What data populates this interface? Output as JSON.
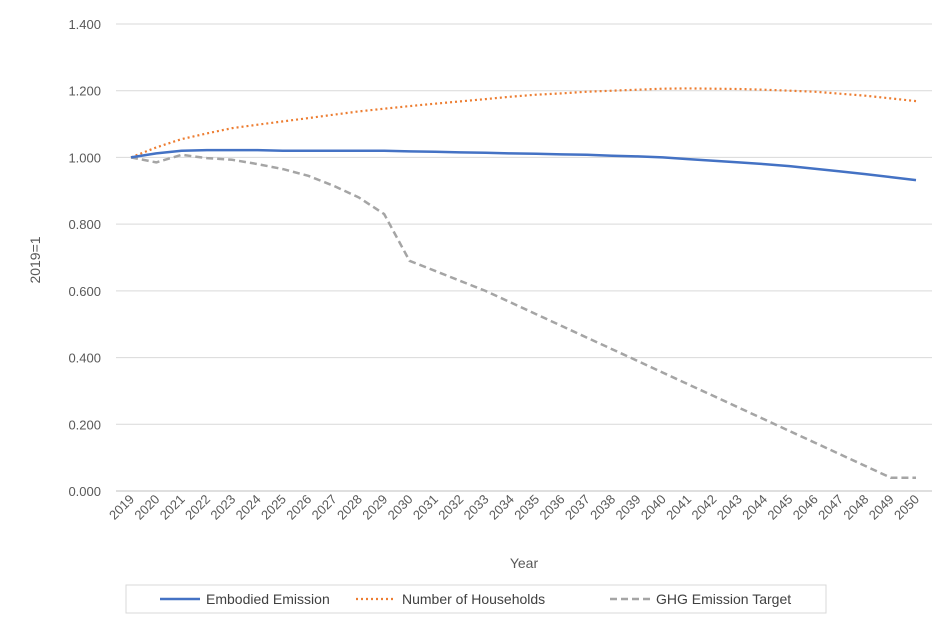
{
  "chart_data": {
    "type": "line",
    "title": "",
    "xlabel": "Year",
    "ylabel": "2019=1",
    "ylim": [
      0,
      1.4
    ],
    "y_ticks": [
      "0.000",
      "0.200",
      "0.400",
      "0.600",
      "0.800",
      "1.000",
      "1.200",
      "1.400"
    ],
    "grid": "horizontal",
    "legend_position": "bottom",
    "categories": [
      "2019",
      "2020",
      "2021",
      "2022",
      "2023",
      "2024",
      "2025",
      "2026",
      "2027",
      "2028",
      "2029",
      "2030",
      "2031",
      "2032",
      "2033",
      "2034",
      "2035",
      "2036",
      "2037",
      "2038",
      "2039",
      "2040",
      "2041",
      "2042",
      "2043",
      "2044",
      "2045",
      "2046",
      "2047",
      "2048",
      "2049",
      "2050"
    ],
    "series": [
      {
        "name": "Embodied Emission",
        "color": "#4472C4",
        "style": "solid",
        "values": [
          1.0,
          1.012,
          1.02,
          1.022,
          1.022,
          1.022,
          1.02,
          1.02,
          1.02,
          1.02,
          1.02,
          1.018,
          1.017,
          1.015,
          1.014,
          1.012,
          1.011,
          1.009,
          1.008,
          1.005,
          1.003,
          1.0,
          0.995,
          0.99,
          0.985,
          0.98,
          0.974,
          0.966,
          0.958,
          0.95,
          0.941,
          0.932
        ]
      },
      {
        "name": "Number of Households",
        "color": "#ED7D31",
        "style": "dotted",
        "values": [
          1.0,
          1.03,
          1.055,
          1.072,
          1.088,
          1.098,
          1.108,
          1.118,
          1.128,
          1.138,
          1.146,
          1.154,
          1.161,
          1.168,
          1.175,
          1.182,
          1.188,
          1.192,
          1.197,
          1.2,
          1.203,
          1.206,
          1.207,
          1.206,
          1.205,
          1.203,
          1.2,
          1.197,
          1.191,
          1.185,
          1.177,
          1.169
        ]
      },
      {
        "name": "GHG Emission Target",
        "color": "#A5A5A5",
        "style": "dashed",
        "values": [
          1.0,
          0.985,
          1.008,
          0.998,
          0.993,
          0.98,
          0.965,
          0.945,
          0.915,
          0.88,
          0.83,
          0.69,
          0.66,
          0.63,
          0.6,
          0.565,
          0.53,
          0.495,
          0.46,
          0.425,
          0.39,
          0.355,
          0.32,
          0.285,
          0.25,
          0.215,
          0.18,
          0.145,
          0.11,
          0.075,
          0.04,
          0.04
        ]
      }
    ]
  }
}
